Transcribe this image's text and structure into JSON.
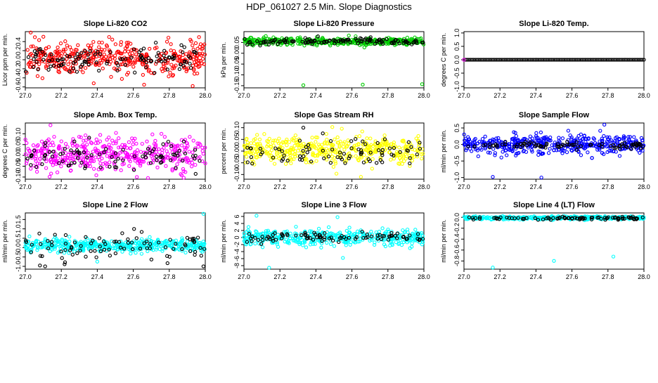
{
  "figure": {
    "title": "HDP_061027  2.5 Min. Slope Diagnostics"
  },
  "chart_data": [
    {
      "type": "scatter",
      "title": "Slope Li-820 CO2",
      "xlabel": "",
      "ylabel": "Licor ppm per min.",
      "xlim": [
        27.0,
        28.0
      ],
      "ylim": [
        -0.62,
        0.62
      ],
      "xticks": [
        "27.0",
        "27.2",
        "27.4",
        "27.6",
        "27.8",
        "28.0"
      ],
      "xtick_values": [
        27.0,
        27.2,
        27.4,
        27.6,
        27.8,
        28.0
      ],
      "yticks": [
        "-0.6",
        "-0.4",
        "-0.2",
        "0.0",
        "0.2",
        "0.4"
      ],
      "ytick_values": [
        -0.6,
        -0.4,
        -0.2,
        0.0,
        0.2,
        0.4
      ],
      "grid": false,
      "legend": "none",
      "colors": {
        "main": "#ff0000",
        "overlay": "#000000"
      },
      "points_main": 420,
      "main_center": 0.03,
      "main_spread": 0.25,
      "main_pos_only": false,
      "points_overlay": 120,
      "overlay_center": 0.02,
      "overlay_spread": 0.2,
      "overlay_pos_only": false,
      "outliers": [
        {
          "x": 27.03,
          "y": 0.6,
          "c": "main"
        },
        {
          "x": 27.93,
          "y": -0.58,
          "c": "main"
        },
        {
          "x": 27.66,
          "y": -0.55,
          "c": "main"
        },
        {
          "x": 27.38,
          "y": -0.52,
          "c": "main"
        }
      ]
    },
    {
      "type": "scatter",
      "title": "Slope Li-820 Pressure",
      "xlabel": "",
      "ylabel": "kPa per min.",
      "xlim": [
        27.0,
        28.0
      ],
      "ylim": [
        -0.16,
        0.1
      ],
      "xticks": [
        "27.0",
        "27.2",
        "27.4",
        "27.6",
        "27.8",
        "28.0"
      ],
      "xtick_values": [
        27.0,
        27.2,
        27.4,
        27.6,
        27.8,
        28.0
      ],
      "yticks": [
        "-0.15",
        "-0.10",
        "-0.05",
        "0.00",
        "0.05"
      ],
      "ytick_values": [
        -0.15,
        -0.1,
        -0.05,
        0.0,
        0.05
      ],
      "grid": false,
      "legend": "none",
      "colors": {
        "main": "#00cc00",
        "overlay": "#000000"
      },
      "points_main": 420,
      "main_center": 0.055,
      "main_spread": 0.012,
      "main_pos_only": false,
      "points_overlay": 120,
      "overlay_center": 0.055,
      "overlay_spread": 0.01,
      "overlay_pos_only": false,
      "outliers": [
        {
          "x": 27.33,
          "y": -0.148,
          "c": "main"
        },
        {
          "x": 27.66,
          "y": -0.145,
          "c": "main"
        },
        {
          "x": 27.99,
          "y": -0.143,
          "c": "main"
        }
      ]
    },
    {
      "type": "scatter",
      "title": "Slope Li-820 Temp.",
      "xlabel": "",
      "ylabel": "degrees C per min.",
      "xlim": [
        27.0,
        28.0
      ],
      "ylim": [
        -1.05,
        1.05
      ],
      "xticks": [
        "27.0",
        "27.2",
        "27.4",
        "27.6",
        "27.8",
        "28.0"
      ],
      "xtick_values": [
        27.0,
        27.2,
        27.4,
        27.6,
        27.8,
        28.0
      ],
      "yticks": [
        "-1.0",
        "-0.5",
        "0.0",
        "0.5",
        "1.0"
      ],
      "ytick_values": [
        -1.0,
        -0.5,
        0.0,
        0.5,
        1.0
      ],
      "grid": false,
      "legend": "none",
      "colors": {
        "main": "#ff00ff",
        "overlay": "#000000"
      },
      "points_main": 0,
      "main_center": 0.0,
      "main_spread": 0.0,
      "main_pos_only": false,
      "points_overlay": 0,
      "overlay_center": 0.0,
      "overlay_spread": 0.0,
      "overlay_pos_only": false,
      "flat_y": 0.0,
      "flat_points": 112,
      "outliers": [
        {
          "x": 27.0,
          "y": 0.0,
          "c": "main"
        }
      ]
    },
    {
      "type": "scatter",
      "title": "Slope Amb. Box Temp.",
      "xlabel": "",
      "ylabel": "degrees C per min.",
      "xlim": [
        27.0,
        28.0
      ],
      "ylim": [
        -0.11,
        0.15
      ],
      "xticks": [
        "27.0",
        "27.2",
        "27.4",
        "27.6",
        "27.8",
        "28.0"
      ],
      "xtick_values": [
        27.0,
        27.2,
        27.4,
        27.6,
        27.8,
        28.0
      ],
      "yticks": [
        "-0.10",
        "-0.05",
        "0.00",
        "0.05",
        "0.10"
      ],
      "ytick_values": [
        -0.1,
        -0.05,
        0.0,
        0.05,
        0.1
      ],
      "grid": false,
      "legend": "none",
      "colors": {
        "main": "#ff00ff",
        "overlay": "#000000"
      },
      "points_main": 440,
      "main_center": 0.01,
      "main_spread": 0.055,
      "main_pos_only": false,
      "points_overlay": 90,
      "overlay_center": 0.0,
      "overlay_spread": 0.05,
      "overlay_pos_only": false,
      "outliers": [
        {
          "x": 27.14,
          "y": 0.14,
          "c": "main"
        },
        {
          "x": 27.62,
          "y": -0.1,
          "c": "main"
        }
      ]
    },
    {
      "type": "scatter",
      "title": "Slope Gas Stream RH",
      "xlabel": "",
      "ylabel": "percent per min.",
      "xlim": [
        27.0,
        28.0
      ],
      "ylim": [
        -0.12,
        0.12
      ],
      "xticks": [
        "27.0",
        "27.2",
        "27.4",
        "27.6",
        "27.8",
        "28.0"
      ],
      "xtick_values": [
        27.0,
        27.2,
        27.4,
        27.6,
        27.8,
        28.0
      ],
      "yticks": [
        "-0.10",
        "-0.05",
        "0.00",
        "0.05",
        "0.10"
      ],
      "ytick_values": [
        -0.1,
        -0.05,
        0.0,
        0.05,
        0.1
      ],
      "grid": false,
      "legend": "none",
      "colors": {
        "main": "#ffff00",
        "overlay": "#000000"
      },
      "points_main": 440,
      "main_center": 0.005,
      "main_spread": 0.045,
      "main_pos_only": false,
      "points_overlay": 80,
      "overlay_center": 0.0,
      "overlay_spread": 0.04,
      "overlay_pos_only": false,
      "outliers": [
        {
          "x": 27.65,
          "y": -0.11,
          "c": "main"
        },
        {
          "x": 27.33,
          "y": 0.1,
          "c": "overlay"
        }
      ]
    },
    {
      "type": "scatter",
      "title": "Slope Sample Flow",
      "xlabel": "",
      "ylabel": "ml/min per min.",
      "xlim": [
        27.0,
        28.0
      ],
      "ylim": [
        -1.05,
        0.65
      ],
      "xticks": [
        "27.0",
        "27.2",
        "27.4",
        "27.6",
        "27.8",
        "28.0"
      ],
      "xtick_values": [
        27.0,
        27.2,
        27.4,
        27.6,
        27.8,
        28.0
      ],
      "yticks": [
        "-1.0",
        "-0.5",
        "0.0",
        "0.5"
      ],
      "ytick_values": [
        -1.0,
        -0.5,
        0.0,
        0.5
      ],
      "grid": false,
      "legend": "none",
      "colors": {
        "main": "#0000ff",
        "overlay": "#000000"
      },
      "points_main": 440,
      "main_center": 0.0,
      "main_spread": 0.2,
      "main_pos_only": false,
      "points_overlay": 90,
      "overlay_center": -0.02,
      "overlay_spread": 0.08,
      "overlay_pos_only": false,
      "outliers": [
        {
          "x": 27.16,
          "y": -0.98,
          "c": "main"
        },
        {
          "x": 27.43,
          "y": -1.0,
          "c": "main"
        },
        {
          "x": 27.78,
          "y": 0.6,
          "c": "main"
        }
      ]
    },
    {
      "type": "scatter",
      "title": "Slope Line 2 Flow",
      "xlabel": "",
      "ylabel": "ml/min per min.",
      "xlim": [
        27.0,
        28.0
      ],
      "ylim": [
        -1.15,
        1.85
      ],
      "xticks": [
        "27.0",
        "27.2",
        "27.4",
        "27.6",
        "27.8",
        "28.0"
      ],
      "xtick_values": [
        27.0,
        27.2,
        27.4,
        27.6,
        27.8,
        28.0
      ],
      "yticks": [
        "-1.0",
        "-0.5",
        "0.0",
        "0.5",
        "1.0",
        "1.5"
      ],
      "ytick_values": [
        -1.0,
        -0.5,
        0.0,
        0.5,
        1.0,
        1.5
      ],
      "grid": false,
      "legend": "none",
      "colors": {
        "main": "#00ffff",
        "overlay": "#000000"
      },
      "points_main": 440,
      "main_center": 0.1,
      "main_spread": 0.25,
      "main_pos_only": false,
      "points_overlay": 90,
      "overlay_center": 0.1,
      "overlay_spread": 0.5,
      "overlay_pos_only": false,
      "outliers": [
        {
          "x": 27.99,
          "y": 1.8,
          "c": "main"
        },
        {
          "x": 27.11,
          "y": -1.0,
          "c": "overlay"
        },
        {
          "x": 27.99,
          "y": -1.0,
          "c": "overlay"
        },
        {
          "x": 27.4,
          "y": -0.75,
          "c": "main"
        }
      ]
    },
    {
      "type": "scatter",
      "title": "Slope Line 3 Flow",
      "xlabel": "",
      "ylabel": "ml/min per min.",
      "xlim": [
        27.0,
        28.0
      ],
      "ylim": [
        -9,
        7
      ],
      "xticks": [
        "27.0",
        "27.2",
        "27.4",
        "27.6",
        "27.8",
        "28.0"
      ],
      "xtick_values": [
        27.0,
        27.2,
        27.4,
        27.6,
        27.8,
        28.0
      ],
      "yticks": [
        "-8",
        "-6",
        "-4",
        "-2",
        "0",
        "2",
        "4",
        "6"
      ],
      "ytick_values": [
        -8,
        -6,
        -4,
        -2,
        0,
        2,
        4,
        6
      ],
      "grid": false,
      "legend": "none",
      "colors": {
        "main": "#00ffff",
        "overlay": "#000000"
      },
      "points_main": 400,
      "main_center": 0.0,
      "main_spread": 1.6,
      "main_pos_only": false,
      "points_overlay": 90,
      "overlay_center": 0.0,
      "overlay_spread": 0.9,
      "overlay_pos_only": false,
      "outliers": [
        {
          "x": 27.07,
          "y": 6.2,
          "c": "main"
        },
        {
          "x": 27.14,
          "y": -8.6,
          "c": "main"
        },
        {
          "x": 27.55,
          "y": -5.8,
          "c": "main"
        },
        {
          "x": 27.52,
          "y": 5.8,
          "c": "main"
        }
      ]
    },
    {
      "type": "scatter",
      "title": "Slope Line 4 (LT) Flow",
      "xlabel": "",
      "ylabel": "ml/min per min.",
      "xlim": [
        27.0,
        28.0
      ],
      "ylim": [
        -0.95,
        0.08
      ],
      "xticks": [
        "27.0",
        "27.2",
        "27.4",
        "27.6",
        "27.8",
        "28.0"
      ],
      "xtick_values": [
        27.0,
        27.2,
        27.4,
        27.6,
        27.8,
        28.0
      ],
      "yticks": [
        "-0.8",
        "-0.6",
        "-0.4",
        "-0.2",
        "0.0"
      ],
      "ytick_values": [
        -0.8,
        -0.6,
        -0.4,
        -0.2,
        0.0
      ],
      "grid": false,
      "legend": "none",
      "colors": {
        "main": "#00ffff",
        "overlay": "#000000"
      },
      "points_main": 420,
      "main_center": -0.01,
      "main_spread": 0.02,
      "main_pos_only": false,
      "points_overlay": 90,
      "overlay_center": -0.015,
      "overlay_spread": 0.02,
      "overlay_pos_only": false,
      "outliers": [
        {
          "x": 27.16,
          "y": -0.92,
          "c": "main"
        },
        {
          "x": 27.5,
          "y": -0.8,
          "c": "main"
        },
        {
          "x": 27.83,
          "y": -0.72,
          "c": "main"
        }
      ]
    }
  ]
}
